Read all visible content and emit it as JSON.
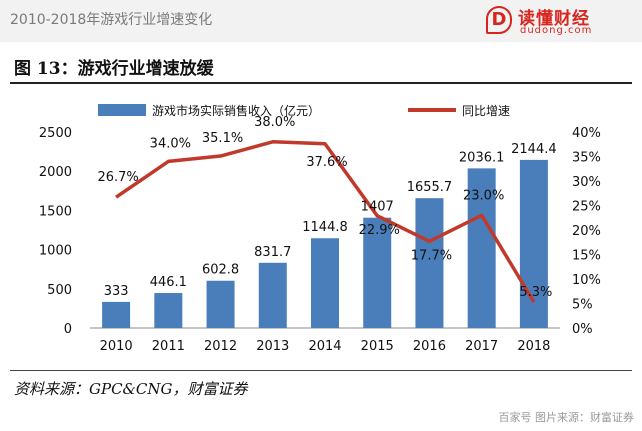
{
  "header": {
    "title": "2010-2018年游戏行业增速变化",
    "logo_name": "读懂财经",
    "logo_url": "dudong.com"
  },
  "figure": {
    "title": "图 13：游戏行业增速放缓",
    "source": "资料来源：GPC&CNG，财富证券",
    "watermark": "百家号 图片来源：财富证券"
  },
  "colors": {
    "bar": "#4a7ebb",
    "line": "#c0392b",
    "brand": "#d7261e"
  },
  "chart_data": {
    "type": "bar",
    "categories": [
      "2010",
      "2011",
      "2012",
      "2013",
      "2014",
      "2015",
      "2016",
      "2017",
      "2018"
    ],
    "series": [
      {
        "name": "游戏市场实际销售收入（亿元）",
        "type": "bar",
        "axis": "left",
        "values": [
          333,
          446.1,
          602.8,
          831.7,
          1144.8,
          1407,
          1655.7,
          2036.1,
          2144.4
        ],
        "labels": [
          "333",
          "446.1",
          "602.8",
          "831.7",
          "1144.8",
          "1407",
          "1655.7",
          "2036.1",
          "2144.4"
        ]
      },
      {
        "name": "同比增速",
        "type": "line",
        "axis": "right",
        "values": [
          26.7,
          34.0,
          35.1,
          38.0,
          37.6,
          22.9,
          17.7,
          23.0,
          5.3
        ],
        "labels": [
          "26.7%",
          "34.0%",
          "35.1%",
          "38.0%",
          "37.6%",
          "22.9%",
          "17.7%",
          "23.0%",
          "5.3%"
        ]
      }
    ],
    "y_left": {
      "min": 0,
      "max": 2500,
      "ticks": [
        "0",
        "500",
        "1000",
        "1500",
        "2000",
        "2500"
      ]
    },
    "y_right": {
      "min": 0,
      "max": 40,
      "ticks": [
        "0%",
        "5%",
        "10%",
        "15%",
        "20%",
        "25%",
        "30%",
        "35%",
        "40%"
      ]
    },
    "legend_position": "top"
  }
}
